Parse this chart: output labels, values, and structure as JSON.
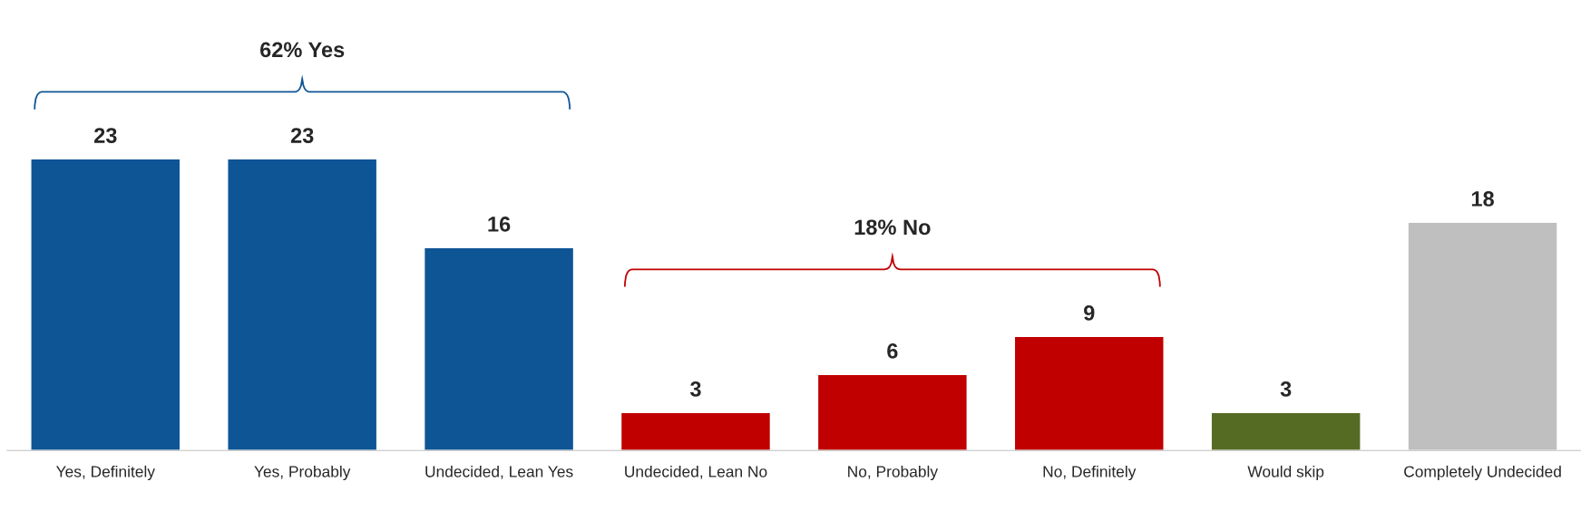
{
  "chart_data": {
    "type": "bar",
    "categories": [
      "Yes, Definitely",
      "Yes, Probably",
      "Undecided, Lean Yes",
      "Undecided, Lean No",
      "No, Probably",
      "No, Definitely",
      "Would skip",
      "Completely Undecided"
    ],
    "values": [
      23,
      23,
      16,
      3,
      6,
      9,
      3,
      18
    ],
    "colors": [
      "#0e5596",
      "#0e5596",
      "#0e5596",
      "#c00000",
      "#c00000",
      "#c00000",
      "#556b24",
      "#bfbfbf"
    ],
    "data_labels": true,
    "tick_labels": "x",
    "grid": false,
    "annotations": [
      "62% Yes",
      "18% No"
    ]
  }
}
